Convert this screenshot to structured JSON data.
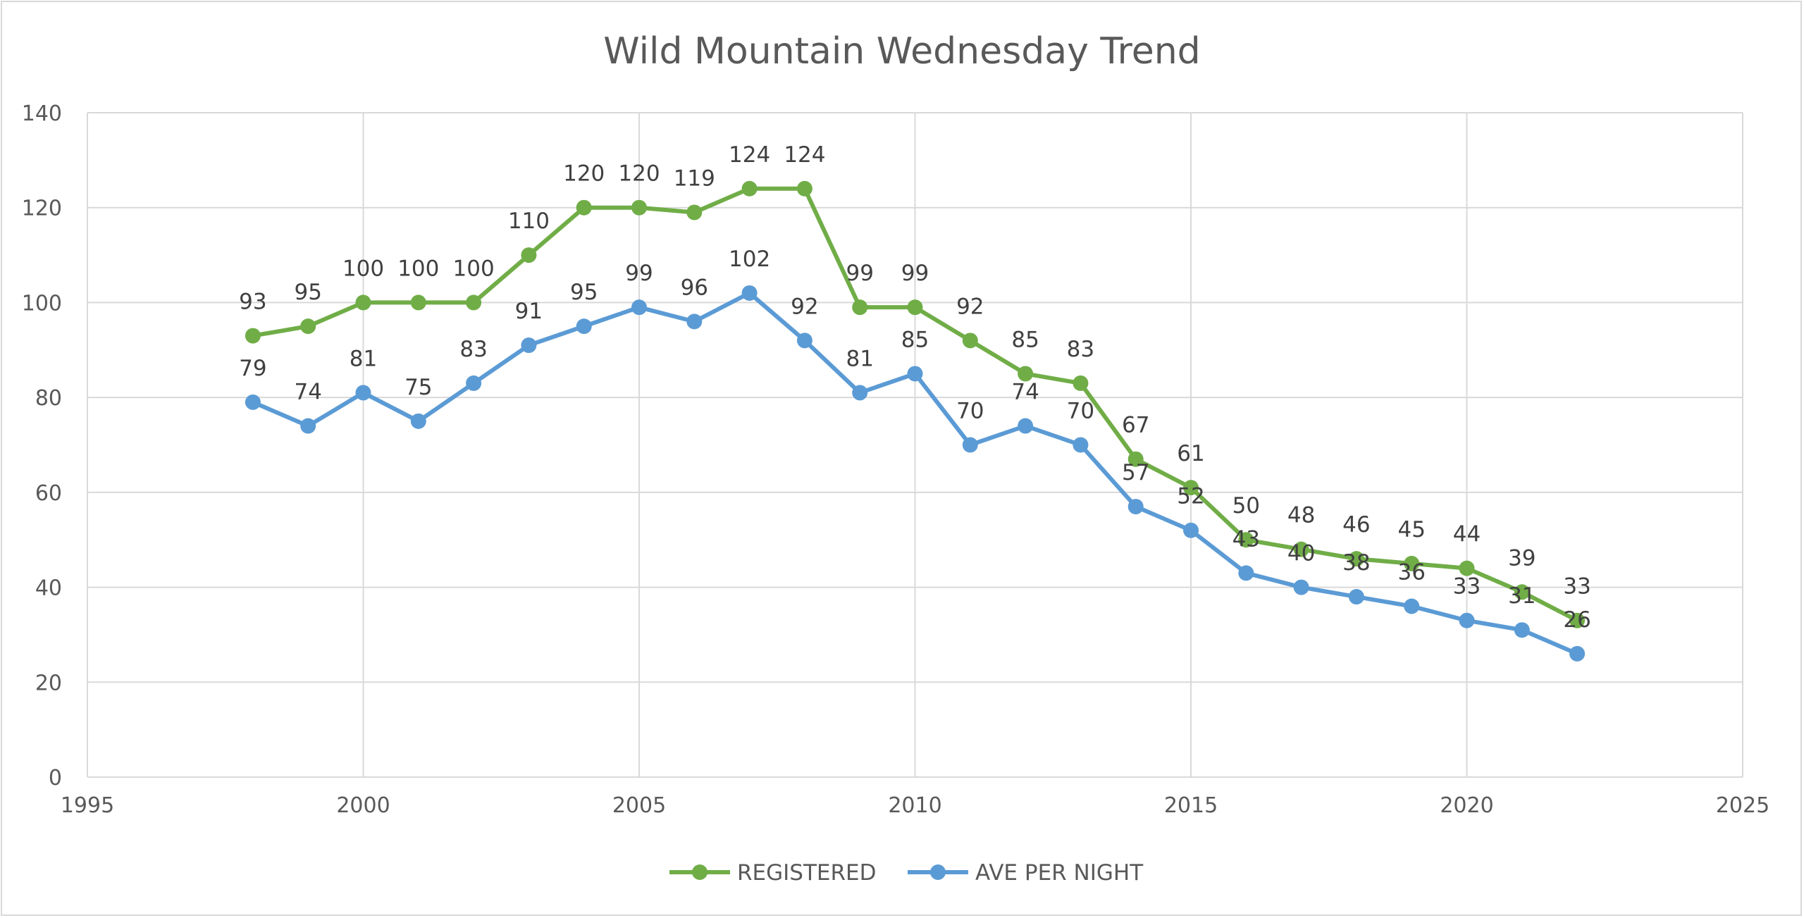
{
  "chart_data": {
    "type": "scatter",
    "title": "Wild Mountain Wednesday Trend",
    "xlabel": "",
    "ylabel": "",
    "xlim": [
      1995,
      2025
    ],
    "ylim": [
      0,
      140
    ],
    "x_ticks": [
      1995,
      2000,
      2005,
      2010,
      2015,
      2020,
      2025
    ],
    "y_ticks": [
      0,
      20,
      40,
      60,
      80,
      100,
      120,
      140
    ],
    "grid": true,
    "legend": "bottom",
    "x": [
      1998,
      1999,
      2000,
      2001,
      2002,
      2003,
      2004,
      2005,
      2006,
      2007,
      2008,
      2009,
      2010,
      2011,
      2012,
      2013,
      2014,
      2015,
      2016,
      2017,
      2018,
      2019,
      2020,
      2021,
      2022
    ],
    "series": [
      {
        "name": "REGISTERED",
        "color": "#70ad47",
        "values": [
          93,
          95,
          100,
          100,
          100,
          110,
          120,
          120,
          119,
          124,
          124,
          99,
          99,
          92,
          85,
          83,
          67,
          61,
          50,
          48,
          46,
          45,
          44,
          39,
          33
        ]
      },
      {
        "name": "AVE PER NIGHT",
        "color": "#5b9bd5",
        "values": [
          79,
          74,
          81,
          75,
          83,
          91,
          95,
          99,
          96,
          102,
          92,
          81,
          85,
          70,
          74,
          70,
          57,
          52,
          43,
          40,
          38,
          36,
          33,
          31,
          26
        ]
      }
    ]
  }
}
